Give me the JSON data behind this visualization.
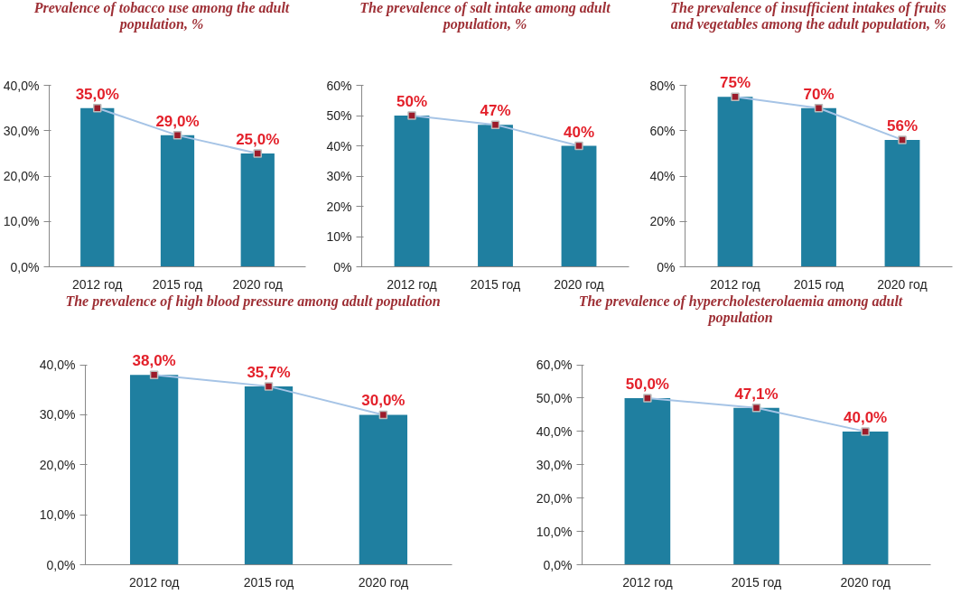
{
  "chart_data": [
    {
      "type": "bar",
      "title": "Prevalence of tobacco use among the adult population, %",
      "categories": [
        "2012 год",
        "2015 год",
        "2020 год"
      ],
      "ylim": [
        0,
        40
      ],
      "yticks": [
        {
          "value": 0,
          "label": "0,0%"
        },
        {
          "value": 10,
          "label": "10,0%"
        },
        {
          "value": 20,
          "label": "20,0%"
        },
        {
          "value": 30,
          "label": "30,0%"
        },
        {
          "value": 40,
          "label": "40,0%"
        }
      ],
      "series": [
        {
          "color": "#1f7fa0",
          "values": [
            35,
            29,
            25
          ]
        },
        {
          "type": "line",
          "color": "#a6c4e6",
          "marker": "square",
          "values": [
            35,
            29,
            25
          ],
          "value_labels": [
            "35,0%",
            "29,0%",
            "25,0%"
          ]
        }
      ]
    },
    {
      "type": "bar",
      "title": "The prevalence of salt intake among adult population, %",
      "categories": [
        "2012 год",
        "2015 год",
        "2020 год"
      ],
      "ylim": [
        0,
        60
      ],
      "yticks": [
        {
          "value": 0,
          "label": "0%"
        },
        {
          "value": 10,
          "label": "10%"
        },
        {
          "value": 20,
          "label": "20%"
        },
        {
          "value": 30,
          "label": "30%"
        },
        {
          "value": 40,
          "label": "40%"
        },
        {
          "value": 50,
          "label": "50%"
        },
        {
          "value": 60,
          "label": "60%"
        }
      ],
      "series": [
        {
          "color": "#1f7fa0",
          "values": [
            50,
            47,
            40
          ]
        },
        {
          "type": "line",
          "color": "#a6c4e6",
          "marker": "square",
          "values": [
            50,
            47,
            40
          ],
          "value_labels": [
            "50%",
            "47%",
            "40%"
          ]
        }
      ]
    },
    {
      "type": "bar",
      "title": "The prevalence of insufficient intakes of fruits and vegetables among the adult population, %",
      "categories": [
        "2012 год",
        "2015 год",
        "2020 год"
      ],
      "ylim": [
        0,
        80
      ],
      "yticks": [
        {
          "value": 0,
          "label": "0%"
        },
        {
          "value": 20,
          "label": "20%"
        },
        {
          "value": 40,
          "label": "40%"
        },
        {
          "value": 60,
          "label": "60%"
        },
        {
          "value": 80,
          "label": "80%"
        }
      ],
      "series": [
        {
          "color": "#1f7fa0",
          "values": [
            75,
            70,
            56
          ]
        },
        {
          "type": "line",
          "color": "#a6c4e6",
          "marker": "square",
          "values": [
            75,
            70,
            56
          ],
          "value_labels": [
            "75%",
            "70%",
            "56%"
          ]
        }
      ]
    },
    {
      "type": "bar",
      "title": "The prevalence of high blood pressure among adult population",
      "categories": [
        "2012 год",
        "2015 год",
        "2020 год"
      ],
      "ylim": [
        0,
        40
      ],
      "yticks": [
        {
          "value": 0,
          "label": "0,0%"
        },
        {
          "value": 10,
          "label": "10,0%"
        },
        {
          "value": 20,
          "label": "20,0%"
        },
        {
          "value": 30,
          "label": "30,0%"
        },
        {
          "value": 40,
          "label": "40,0%"
        }
      ],
      "series": [
        {
          "color": "#1f7fa0",
          "values": [
            38,
            35.7,
            30
          ]
        },
        {
          "type": "line",
          "color": "#a6c4e6",
          "marker": "square",
          "values": [
            38,
            35.7,
            30
          ],
          "value_labels": [
            "38,0%",
            "35,7%",
            "30,0%"
          ]
        }
      ]
    },
    {
      "type": "bar",
      "title": "The prevalence of hypercholesterolaemia among adult population",
      "categories": [
        "2012 год",
        "2015 год",
        "2020 год"
      ],
      "ylim": [
        0,
        60
      ],
      "yticks": [
        {
          "value": 0,
          "label": "0,0%"
        },
        {
          "value": 10,
          "label": "10,0%"
        },
        {
          "value": 20,
          "label": "20,0%"
        },
        {
          "value": 30,
          "label": "30,0%"
        },
        {
          "value": 40,
          "label": "40,0%"
        },
        {
          "value": 50,
          "label": "50,0%"
        },
        {
          "value": 60,
          "label": "60,0%"
        }
      ],
      "series": [
        {
          "color": "#1f7fa0",
          "values": [
            50,
            47.1,
            40
          ]
        },
        {
          "type": "line",
          "color": "#a6c4e6",
          "marker": "square",
          "values": [
            50,
            47.1,
            40
          ],
          "value_labels": [
            "50,0%",
            "47,1%",
            "40,0%"
          ]
        }
      ]
    }
  ]
}
